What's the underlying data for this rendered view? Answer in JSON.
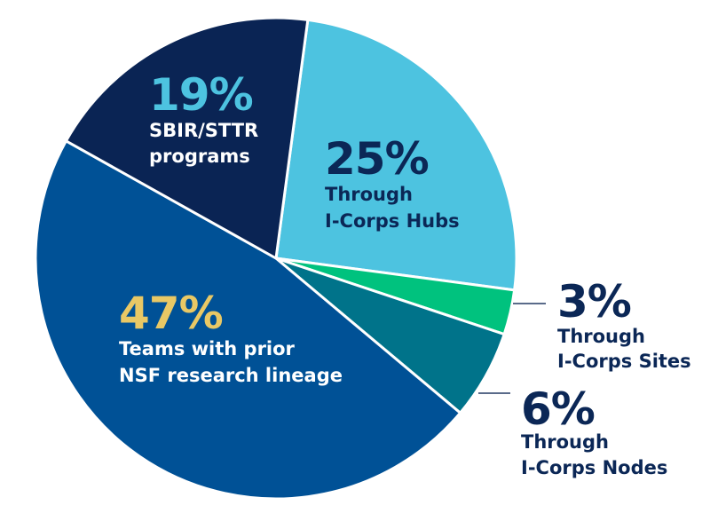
{
  "chart_data": {
    "type": "pie",
    "start_angle_deg": 7.6,
    "slices": [
      {
        "value": 25,
        "pct_label": "25%",
        "label_lines": [
          "Through",
          "I-Corps Hubs"
        ],
        "color": "#4dc3e0",
        "pct_color": "#0b2756",
        "text_color": "#0b2756"
      },
      {
        "value": 3,
        "pct_label": "3%",
        "label_lines": [
          "Through",
          "I-Corps Sites"
        ],
        "color": "#00c27e",
        "pct_color": "#0b2756",
        "text_color": "#0b2756"
      },
      {
        "value": 6,
        "pct_label": "6%",
        "label_lines": [
          "Through",
          "I-Corps Nodes"
        ],
        "color": "#00738a",
        "pct_color": "#0b2756",
        "text_color": "#0b2756"
      },
      {
        "value": 47,
        "pct_label": "47%",
        "label_lines": [
          "Teams with prior",
          "NSF research lineage"
        ],
        "color": "#005196",
        "pct_color": "#e9c865",
        "text_color": "#ffffff"
      },
      {
        "value": 19,
        "pct_label": "19%",
        "label_lines": [
          "SBIR/STTR",
          "programs"
        ],
        "color": "#0a2454",
        "pct_color": "#4dc3e0",
        "text_color": "#ffffff"
      }
    ],
    "leader_line_color": "#5a6b8a"
  }
}
